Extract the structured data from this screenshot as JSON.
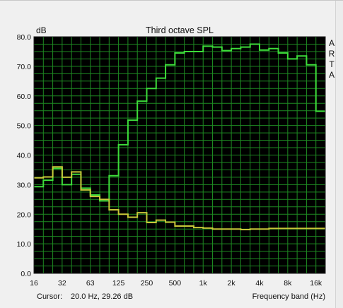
{
  "chart_data": {
    "type": "line",
    "title": "Third octave SPL",
    "ylabel": "dB",
    "xlabel": "Frequency band (Hz)",
    "ylim": [
      0,
      80
    ],
    "yticks": [
      0,
      10,
      20,
      30,
      40,
      50,
      60,
      70,
      80
    ],
    "ytick_labels": [
      "0.0",
      "10.0",
      "20.0",
      "30.0",
      "40.0",
      "50.0",
      "60.0",
      "70.0",
      "80.0"
    ],
    "xtick_labels": [
      "16",
      "32",
      "63",
      "125",
      "250",
      "500",
      "1k",
      "2k",
      "4k",
      "8k",
      "16k"
    ],
    "x_band_count": 31,
    "grid": true,
    "side_text": [
      "A",
      "R",
      "T",
      "A"
    ],
    "cursor_label": "Cursor:",
    "cursor_value": "20.0 Hz, 29.26 dB",
    "background_color": "#000000",
    "grid_color": "#1e8a22",
    "series": [
      {
        "color": "#3ddc3a",
        "values": [
          29.3,
          31.5,
          35.5,
          30.0,
          33.5,
          28.8,
          26.5,
          24.5,
          33.0,
          43.5,
          51.8,
          58.2,
          62.5,
          66.0,
          70.5,
          74.5,
          75.0,
          75.0,
          76.8,
          76.5,
          75.3,
          76.0,
          76.5,
          77.5,
          75.5,
          76.0,
          74.5,
          72.5,
          73.5,
          70.5,
          54.8
        ]
      },
      {
        "color": "#c8c83a",
        "values": [
          32.3,
          32.6,
          36.0,
          32.5,
          34.3,
          28.2,
          26.0,
          25.0,
          21.5,
          20.0,
          19.0,
          20.5,
          17.2,
          18.0,
          17.3,
          16.0,
          16.0,
          15.5,
          15.3,
          15.0,
          15.0,
          15.0,
          14.8,
          15.0,
          15.0,
          15.2,
          15.2,
          15.2,
          15.2,
          15.2,
          15.2
        ]
      }
    ]
  }
}
